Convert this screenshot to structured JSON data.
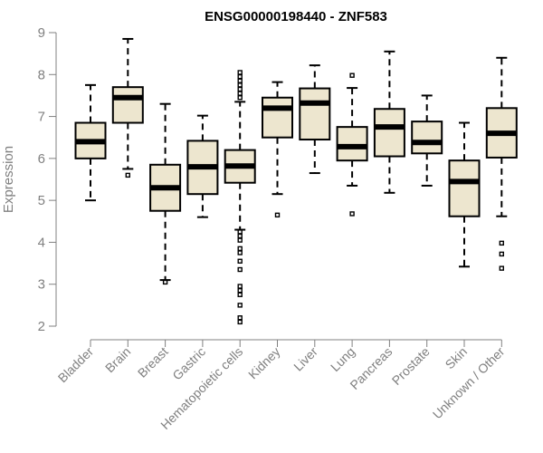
{
  "chart_data": {
    "type": "boxplot",
    "title": "ENSG00000198440 - ZNF583",
    "xlabel": "",
    "ylabel": "Expression",
    "ylim": [
      2,
      9
    ],
    "yticks": [
      2,
      3,
      4,
      5,
      6,
      7,
      8,
      9
    ],
    "grid": false,
    "colors": {
      "box_fill": "#ede6cf",
      "box_stroke": "#000000",
      "axis": "#808080",
      "text": "#808080"
    },
    "series": [
      {
        "name": "Bladder",
        "whisker_low": 5.0,
        "q1": 6.0,
        "median": 6.4,
        "q3": 6.85,
        "whisker_high": 7.75,
        "outliers": []
      },
      {
        "name": "Brain",
        "whisker_low": 5.75,
        "q1": 6.85,
        "median": 7.45,
        "q3": 7.7,
        "whisker_high": 8.85,
        "outliers": [
          5.6
        ]
      },
      {
        "name": "Breast",
        "whisker_low": 3.1,
        "q1": 4.75,
        "median": 5.3,
        "q3": 5.85,
        "whisker_high": 7.3,
        "outliers": [
          3.05
        ]
      },
      {
        "name": "Gastric",
        "whisker_low": 4.6,
        "q1": 5.15,
        "median": 5.8,
        "q3": 6.42,
        "whisker_high": 7.02,
        "outliers": []
      },
      {
        "name": "Hematopoietic cells",
        "whisker_low": 4.3,
        "q1": 5.42,
        "median": 5.82,
        "q3": 6.2,
        "whisker_high": 7.35,
        "outliers": [
          8.05,
          7.95,
          7.85,
          7.75,
          7.65,
          7.55,
          7.45,
          4.25,
          4.15,
          4.05,
          3.85,
          3.75,
          3.55,
          3.35,
          2.95,
          2.85,
          2.75,
          2.5,
          2.2,
          2.1
        ]
      },
      {
        "name": "Kidney",
        "whisker_low": 5.15,
        "q1": 6.5,
        "median": 7.2,
        "q3": 7.45,
        "whisker_high": 7.82,
        "outliers": [
          4.65
        ]
      },
      {
        "name": "Liver",
        "whisker_low": 5.65,
        "q1": 6.45,
        "median": 7.32,
        "q3": 7.67,
        "whisker_high": 8.22,
        "outliers": []
      },
      {
        "name": "Lung",
        "whisker_low": 5.35,
        "q1": 5.95,
        "median": 6.28,
        "q3": 6.75,
        "whisker_high": 7.68,
        "outliers": [
          7.98,
          4.68
        ]
      },
      {
        "name": "Pancreas",
        "whisker_low": 5.18,
        "q1": 6.05,
        "median": 6.75,
        "q3": 7.18,
        "whisker_high": 8.55,
        "outliers": []
      },
      {
        "name": "Prostate",
        "whisker_low": 5.35,
        "q1": 6.12,
        "median": 6.38,
        "q3": 6.88,
        "whisker_high": 7.5,
        "outliers": []
      },
      {
        "name": "Skin",
        "whisker_low": 3.42,
        "q1": 4.62,
        "median": 5.45,
        "q3": 5.95,
        "whisker_high": 6.85,
        "outliers": []
      },
      {
        "name": "Unknown / Other",
        "whisker_low": 4.62,
        "q1": 6.02,
        "median": 6.6,
        "q3": 7.2,
        "whisker_high": 8.4,
        "outliers": [
          3.98,
          3.72,
          3.38
        ]
      }
    ]
  }
}
